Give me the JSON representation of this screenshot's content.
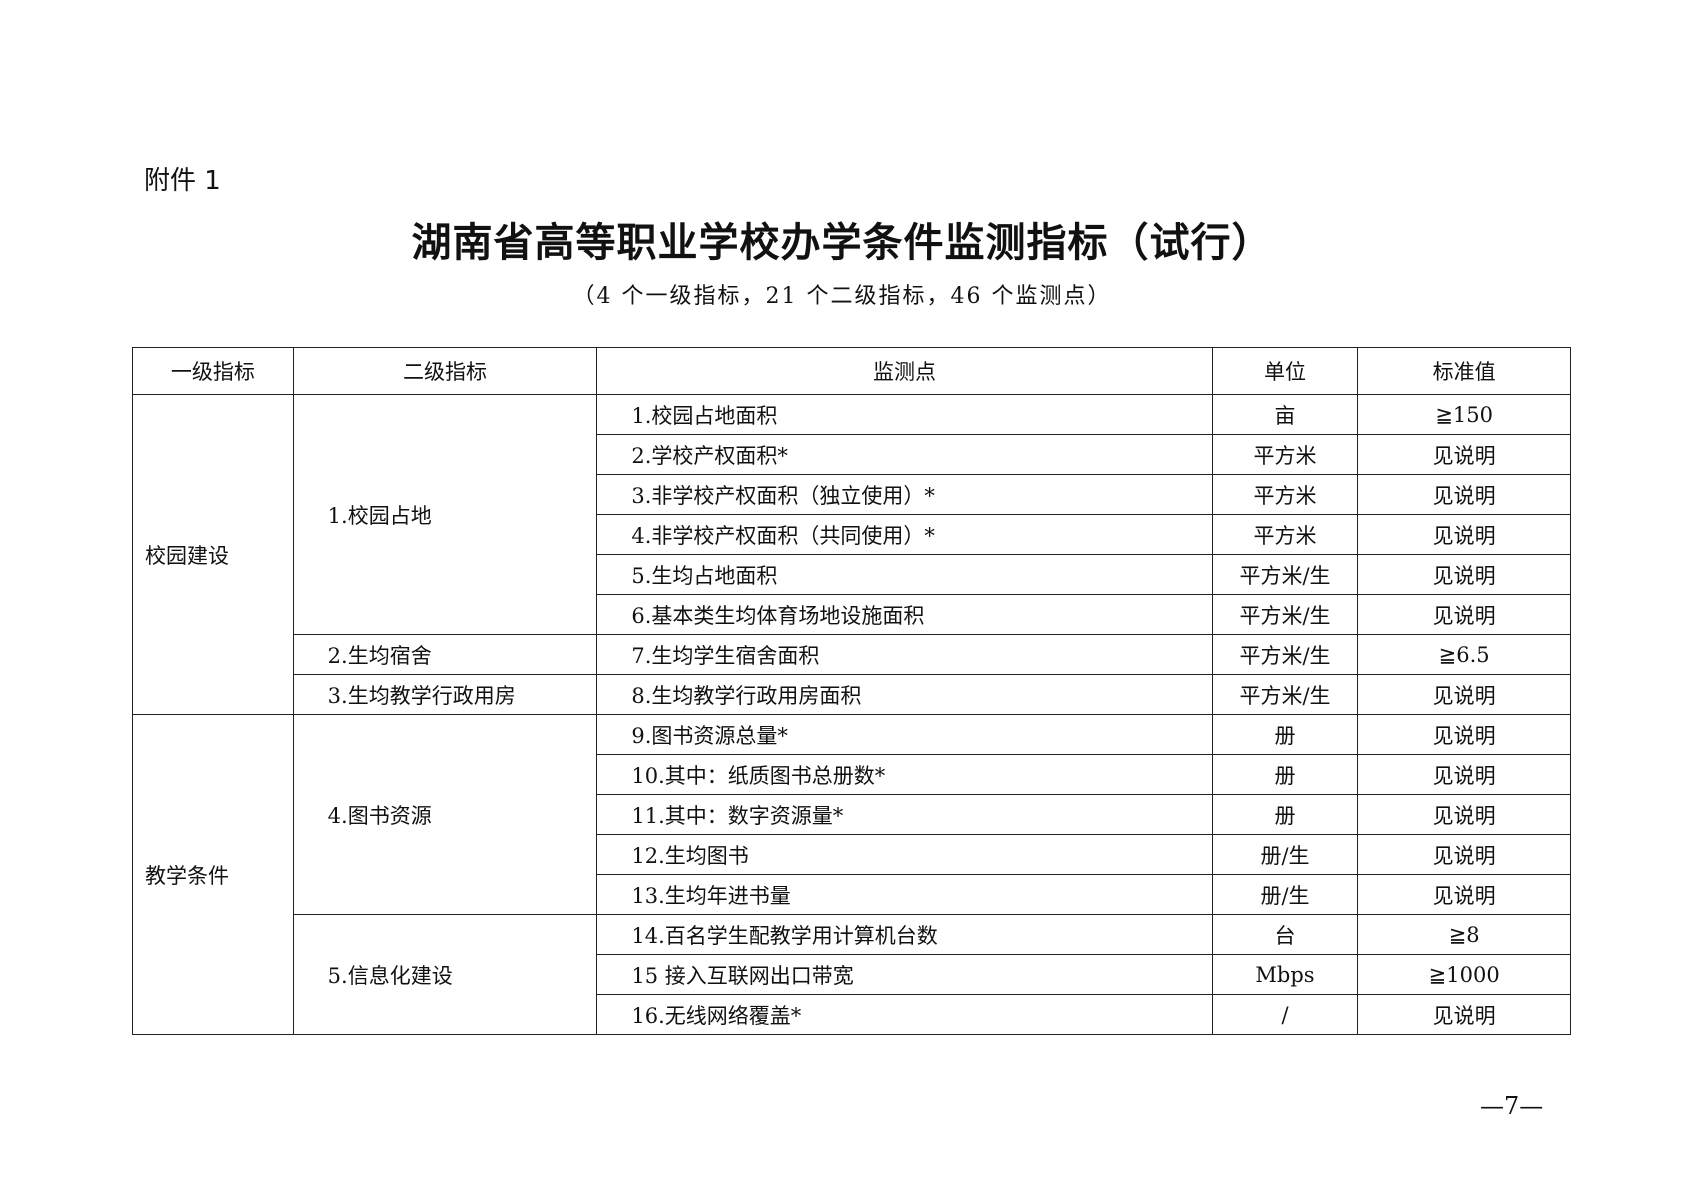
{
  "attachment_label": "附件 1",
  "title": "湖南省高等职业学校办学条件监测指标（试行）",
  "subtitle": "（4 个一级指标，21 个二级指标，46 个监测点）",
  "table": {
    "headers": [
      "一级指标",
      "二级指标",
      "监测点",
      "单位",
      "标准值"
    ],
    "groups": [
      {
        "level1": "校园建设",
        "level2": [
          {
            "name": "1.校园占地",
            "points": [
              {
                "point": "1.校园占地面积",
                "unit": "亩",
                "standard": "≧150"
              },
              {
                "point": "2.学校产权面积*",
                "unit": "平方米",
                "standard": "见说明"
              },
              {
                "point": "3.非学校产权面积（独立使用）*",
                "unit": "平方米",
                "standard": "见说明"
              },
              {
                "point": "4.非学校产权面积（共同使用）*",
                "unit": "平方米",
                "standard": "见说明"
              },
              {
                "point": "5.生均占地面积",
                "unit": "平方米/生",
                "standard": "见说明"
              },
              {
                "point": "6.基本类生均体育场地设施面积",
                "unit": "平方米/生",
                "standard": "见说明"
              }
            ]
          },
          {
            "name": "2.生均宿舍",
            "points": [
              {
                "point": "7.生均学生宿舍面积",
                "unit": "平方米/生",
                "standard": "≧6.5"
              }
            ]
          },
          {
            "name": "3.生均教学行政用房",
            "points": [
              {
                "point": "8.生均教学行政用房面积",
                "unit": "平方米/生",
                "standard": "见说明"
              }
            ]
          }
        ]
      },
      {
        "level1": "教学条件",
        "level2": [
          {
            "name": "4.图书资源",
            "points": [
              {
                "point": "9.图书资源总量*",
                "unit": "册",
                "standard": "见说明"
              },
              {
                "point": "10.其中：纸质图书总册数*",
                "unit": "册",
                "standard": "见说明"
              },
              {
                "point": "11.其中：数字资源量*",
                "unit": "册",
                "standard": "见说明"
              },
              {
                "point": "12.生均图书",
                "unit": "册/生",
                "standard": "见说明"
              },
              {
                "point": "13.生均年进书量",
                "unit": "册/生",
                "standard": "见说明"
              }
            ]
          },
          {
            "name": "5.信息化建设",
            "points": [
              {
                "point": "14.百名学生配教学用计算机台数",
                "unit": "台",
                "standard": "≧8"
              },
              {
                "point": "15 接入互联网出口带宽",
                "unit": "Mbps",
                "standard": "≧1000"
              },
              {
                "point": "16.无线网络覆盖*",
                "unit": "/",
                "standard": "见说明"
              }
            ]
          }
        ]
      }
    ]
  },
  "page_number": "—7—"
}
